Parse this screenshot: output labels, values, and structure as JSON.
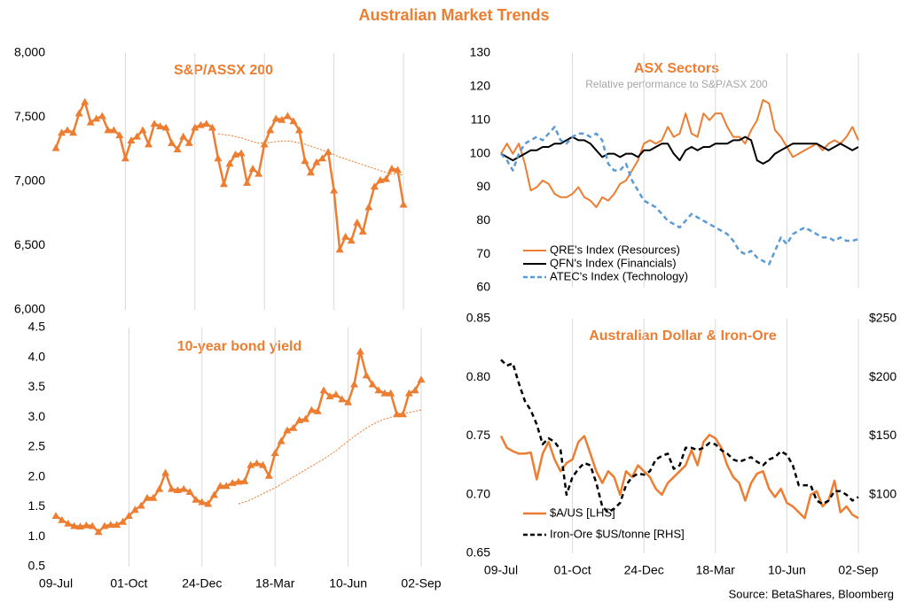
{
  "title": "Australian Market Trends",
  "source": "Source: BetaShares, Bloomberg",
  "chart_data": [
    {
      "type": "line",
      "title": "S&P/ASSX 200",
      "ylim": [
        6000,
        8000
      ],
      "yticks": [
        {
          "value": 6000,
          "label": "6,000"
        },
        {
          "value": 6500,
          "label": "6,500"
        },
        {
          "value": 7000,
          "label": "7,000"
        },
        {
          "value": 7500,
          "label": "7,500"
        },
        {
          "value": 8000,
          "label": "8,000"
        }
      ],
      "grid": true,
      "marker": "triangle",
      "series": [
        {
          "color": "#ed7d31",
          "width": 2.5,
          "dash": false,
          "marker": true,
          "values": [
            7260,
            7380,
            7400,
            7380,
            7530,
            7620,
            7460,
            7490,
            7510,
            7400,
            7400,
            7360,
            7180,
            7320,
            7350,
            7400,
            7290,
            7450,
            7430,
            7420,
            7300,
            7250,
            7350,
            7300,
            7420,
            7440,
            7450,
            7420,
            7180,
            6980,
            7140,
            7210,
            7220,
            6990,
            7100,
            7060,
            7290,
            7400,
            7490,
            7480,
            7510,
            7470,
            7400,
            7160,
            7070,
            7150,
            7180,
            7230,
            6930,
            6470,
            6570,
            6540,
            6680,
            6610,
            6800,
            6960,
            7010,
            7020,
            7100,
            7090,
            6820
          ]
        },
        {
          "color": "#ed7d31",
          "width": 1,
          "dash": true,
          "marker": false,
          "values": [
            null,
            null,
            null,
            null,
            null,
            null,
            null,
            null,
            null,
            null,
            null,
            null,
            null,
            null,
            null,
            null,
            null,
            null,
            null,
            null,
            null,
            null,
            null,
            null,
            null,
            null,
            null,
            null,
            7370,
            7365,
            7360,
            7350,
            7340,
            7325,
            7310,
            7300,
            7300,
            7305,
            7310,
            7315,
            7315,
            7310,
            7300,
            7290,
            7275,
            7260,
            7245,
            7230,
            7210,
            7190,
            7175,
            7160,
            7145,
            7130,
            7115,
            7100,
            7085,
            7070,
            7060,
            7055,
            7050
          ]
        }
      ]
    },
    {
      "type": "line",
      "title": "10-year bond yield",
      "categories": [
        "09-Jul",
        null,
        null,
        null,
        null,
        null,
        null,
        null,
        null,
        null,
        null,
        null,
        "01-Oct",
        null,
        null,
        null,
        null,
        null,
        null,
        null,
        null,
        null,
        null,
        null,
        "24-Dec",
        null,
        null,
        null,
        null,
        null,
        null,
        null,
        null,
        null,
        null,
        null,
        "18-Mar",
        null,
        null,
        null,
        null,
        null,
        null,
        null,
        null,
        null,
        null,
        null,
        "10-Jun",
        null,
        null,
        null,
        null,
        null,
        null,
        null,
        null,
        null,
        null,
        null,
        "02-Sep"
      ],
      "ylim": [
        0.5,
        4.5
      ],
      "yticks": [
        0.5,
        {
          "value": 1,
          "label": "1.0"
        },
        1.5,
        {
          "value": 2,
          "label": "2.0"
        },
        2.5,
        {
          "value": 3,
          "label": "3.0"
        },
        3.5,
        {
          "value": 4,
          "label": "4.0"
        },
        4.5
      ],
      "grid": true,
      "marker": "triangle",
      "series": [
        {
          "color": "#ed7d31",
          "width": 2.5,
          "dash": false,
          "marker": true,
          "values": [
            1.35,
            1.28,
            1.22,
            1.18,
            1.17,
            1.19,
            1.18,
            1.08,
            1.18,
            1.2,
            1.2,
            1.25,
            1.35,
            1.45,
            1.52,
            1.65,
            1.65,
            1.8,
            2.07,
            1.8,
            1.78,
            1.8,
            1.75,
            1.62,
            1.58,
            1.55,
            1.7,
            1.85,
            1.85,
            1.9,
            1.92,
            1.93,
            2.2,
            2.23,
            2.2,
            2.02,
            2.4,
            2.6,
            2.78,
            2.82,
            2.95,
            2.97,
            3.12,
            3.1,
            3.45,
            3.35,
            3.38,
            3.3,
            3.25,
            3.55,
            4.1,
            3.7,
            3.55,
            3.45,
            3.4,
            3.4,
            3.05,
            3.05,
            3.4,
            3.45,
            3.63
          ]
        },
        {
          "color": "#ed7d31",
          "width": 1,
          "dash": true,
          "marker": false,
          "values": [
            null,
            null,
            null,
            null,
            null,
            null,
            null,
            null,
            null,
            null,
            null,
            null,
            null,
            null,
            null,
            null,
            null,
            null,
            null,
            null,
            null,
            null,
            null,
            null,
            null,
            null,
            null,
            null,
            null,
            null,
            1.55,
            1.58,
            1.62,
            1.67,
            1.72,
            1.77,
            1.82,
            1.88,
            1.94,
            2.0,
            2.06,
            2.12,
            2.18,
            2.24,
            2.3,
            2.37,
            2.44,
            2.52,
            2.6,
            2.68,
            2.75,
            2.82,
            2.88,
            2.93,
            2.97,
            3.0,
            3.03,
            3.06,
            3.08,
            3.1,
            3.12
          ]
        }
      ]
    },
    {
      "type": "line",
      "title": "ASX Sectors",
      "subtitle": "Relative performance to S&P/ASX 200",
      "ylim": [
        60,
        130
      ],
      "yticks": [
        60,
        70,
        80,
        90,
        100,
        110,
        120,
        130
      ],
      "grid": true,
      "legend": "lower left",
      "series": [
        {
          "name": "QRE's Index (Resources)",
          "color": "#ed7d31",
          "width": 2,
          "dash": false,
          "values": [
            100,
            103,
            100,
            103,
            97,
            89,
            90,
            92,
            91,
            88,
            87,
            87,
            88,
            90,
            87,
            86,
            84,
            87,
            86,
            88,
            91,
            92,
            95,
            98,
            103,
            104,
            103,
            104,
            108,
            105,
            106,
            112,
            106,
            105,
            112,
            110,
            112,
            112,
            108,
            105,
            105,
            103,
            107,
            110,
            116,
            115,
            107,
            105,
            102,
            99,
            100,
            101,
            102,
            103,
            101,
            103,
            104,
            103,
            105,
            108,
            104
          ]
        },
        {
          "name": "QFN's Index (Financials)",
          "color": "#000000",
          "width": 2,
          "dash": false,
          "values": [
            100,
            99,
            98,
            99,
            100,
            101,
            101,
            102,
            102,
            103,
            103,
            104,
            105,
            104,
            104,
            103,
            101,
            99,
            100,
            100,
            99,
            100,
            100,
            99,
            101,
            101,
            102,
            103,
            103,
            100,
            98,
            101,
            102,
            101,
            102,
            102,
            103,
            103,
            103,
            104,
            104,
            105,
            104,
            98,
            97,
            98,
            100,
            101,
            102,
            103,
            103,
            103,
            103,
            103,
            102,
            101,
            102,
            103,
            102,
            101,
            102
          ]
        },
        {
          "name": "ATEC's Index (Technology)",
          "color": "#5b9bd5",
          "width": 2.5,
          "dash": true,
          "values": [
            100,
            98,
            95,
            100,
            103,
            104,
            105,
            104,
            106,
            108,
            104,
            103,
            105,
            106,
            106,
            105,
            106,
            104,
            97,
            95,
            95,
            97,
            92,
            89,
            86,
            85,
            84,
            82,
            80,
            79,
            78,
            80,
            82,
            81,
            80,
            79,
            78,
            77,
            76,
            74,
            71,
            70,
            71,
            69,
            68,
            67,
            71,
            75,
            73,
            76,
            77,
            78,
            77,
            76,
            75,
            75,
            74,
            75,
            74,
            74,
            74.5
          ]
        }
      ]
    },
    {
      "type": "line",
      "title": "Australian Dollar & Iron-Ore",
      "categories": [
        "09-Jul",
        null,
        null,
        null,
        null,
        null,
        null,
        null,
        null,
        null,
        null,
        null,
        "01-Oct",
        null,
        null,
        null,
        null,
        null,
        null,
        null,
        null,
        null,
        null,
        null,
        "24-Dec",
        null,
        null,
        null,
        null,
        null,
        null,
        null,
        null,
        null,
        null,
        null,
        "18-Mar",
        null,
        null,
        null,
        null,
        null,
        null,
        null,
        null,
        null,
        null,
        null,
        "10-Jun",
        null,
        null,
        null,
        null,
        null,
        null,
        null,
        null,
        null,
        null,
        null,
        "02-Sep"
      ],
      "ylim": [
        0.65,
        0.85
      ],
      "yticks": [
        0.65,
        {
          "value": 0.7,
          "label": "0.70"
        },
        0.75,
        {
          "value": 0.8,
          "label": "0.80"
        },
        0.85
      ],
      "y2lim": [
        50,
        250
      ],
      "y2ticks": [
        {
          "value": 100,
          "label": "$100"
        },
        {
          "value": 150,
          "label": "$150"
        },
        {
          "value": 200,
          "label": "$200"
        },
        {
          "value": 250,
          "label": "$250"
        }
      ],
      "grid": true,
      "legend": "lower left",
      "series": [
        {
          "name": "$A/US [LHS]",
          "color": "#ed7d31",
          "width": 2.5,
          "dash": false,
          "values": [
            0.75,
            0.74,
            0.737,
            0.735,
            0.735,
            0.736,
            0.713,
            0.735,
            0.745,
            0.73,
            0.72,
            0.727,
            0.73,
            0.745,
            0.75,
            0.735,
            0.72,
            0.71,
            0.72,
            0.715,
            0.7,
            0.72,
            0.715,
            0.725,
            0.72,
            0.715,
            0.705,
            0.7,
            0.71,
            0.715,
            0.72,
            0.725,
            0.738,
            0.725,
            0.745,
            0.751,
            0.748,
            0.74,
            0.725,
            0.715,
            0.71,
            0.695,
            0.71,
            0.718,
            0.72,
            0.705,
            0.698,
            0.705,
            0.693,
            0.69,
            0.685,
            0.68,
            0.7,
            0.703,
            0.69,
            0.695,
            0.712,
            0.685,
            0.69,
            0.683,
            0.68
          ]
        },
        {
          "name": "Iron-Ore $US/tonne [RHS]",
          "color": "#000000",
          "width": 2.5,
          "dash": true,
          "axis": "y2",
          "values": [
            215,
            210,
            212,
            195,
            180,
            172,
            160,
            143,
            148,
            145,
            138,
            100,
            115,
            122,
            127,
            125,
            110,
            90,
            85,
            88,
            93,
            108,
            115,
            118,
            117,
            120,
            130,
            133,
            135,
            122,
            125,
            140,
            140,
            138,
            140,
            144,
            143,
            138,
            135,
            130,
            128,
            130,
            132,
            128,
            125,
            130,
            132,
            137,
            134,
            125,
            108,
            108,
            108,
            95,
            92,
            95,
            103,
            103,
            100,
            95,
            98
          ]
        }
      ]
    }
  ]
}
